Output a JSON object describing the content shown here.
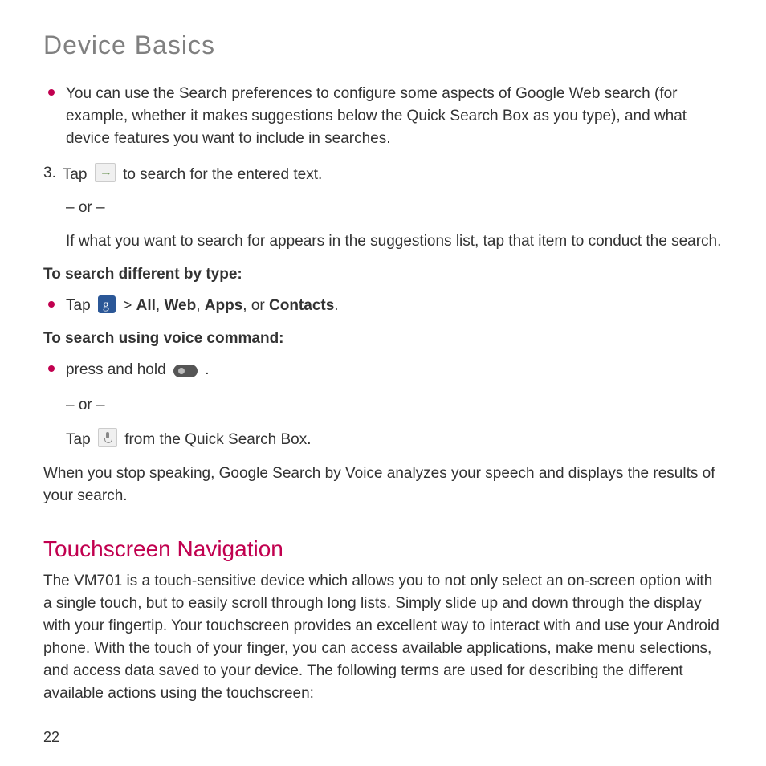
{
  "page": {
    "title": "Device Basics",
    "number": "22"
  },
  "bullets": {
    "search_prefs": "You can use the Search preferences to configure some aspects of Google Web search (for example, whether it makes suggestions below the Quick Search Box as you type), and what device features you want to include in searches."
  },
  "step3": {
    "num": "3.",
    "tap": "Tap",
    "after_icon": "to search for the entered text.",
    "or": "– or –",
    "suggestion": "If what you want to search for appears in the suggestions list, tap that item to conduct the search."
  },
  "search_type": {
    "label": "To search different by type:",
    "tap": "Tap",
    "gt": ">",
    "opts_all": "All",
    "opts_sep1": ", ",
    "opts_web": "Web",
    "opts_sep2": ", ",
    "opts_apps": "Apps",
    "opts_sep3": ", or ",
    "opts_contacts": "Contacts",
    "period": "."
  },
  "voice": {
    "label": "To search using voice command:",
    "press_hold": "press and hold",
    "period1": ".",
    "or": "– or –",
    "tap": "Tap",
    "from_box": "from the Quick Search Box."
  },
  "voice_result": "When you stop speaking, Google Search by Voice analyzes your speech and displays the results of your search.",
  "touchnav": {
    "heading": "Touchscreen Navigation",
    "body": "The VM701 is a touch-sensitive device which allows you to not only select an on-screen option with a single touch, but to easily scroll through long lists. Simply slide up and down through the display with your fingertip. Your touchscreen provides an excellent way to interact with and use your Android phone. With the touch of your finger, you can access available applications, make menu selections, and access data saved to your device. The following terms are used for describing the different available actions using the touchscreen:"
  }
}
